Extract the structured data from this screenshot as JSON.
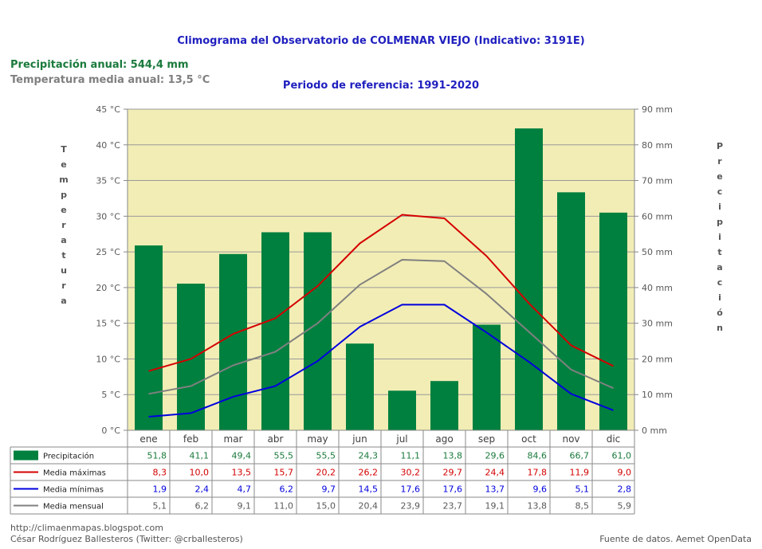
{
  "header": {
    "title": "Climograma del Observatorio de COLMENAR VIEJO (Indicativo: 3191E)",
    "period": "Periodo de referencia: 1991-2020",
    "annual_precipitation": "Precipitación anual: 544,4 mm",
    "annual_temperature": "Temperatura media anual: 13,5 °C"
  },
  "axis_labels": {
    "left_letters": [
      "T",
      "e",
      "m",
      "p",
      "e",
      "r",
      "a",
      "t",
      "u",
      "r",
      "a"
    ],
    "right_letters": [
      "P",
      "r",
      "e",
      "c",
      "i",
      "p",
      "i",
      "t",
      "a",
      "c",
      "i",
      "ó",
      "n"
    ]
  },
  "footer": {
    "url": "http://climaenmapas.blogspot.com",
    "author": "César Rodríguez Ballesteros (Twitter: @crballesteros)",
    "source": "Fuente de datos. Aemet OpenData"
  },
  "colors": {
    "plot_bg": "#f2edb5",
    "bars": "#00803f",
    "max": "#d40000",
    "min": "#0000dd",
    "mean": "#808080",
    "prec_text": "#1a7a3c"
  },
  "chart_data": {
    "type": "bar+line",
    "categories": [
      "ene",
      "feb",
      "mar",
      "abr",
      "may",
      "jun",
      "jul",
      "ago",
      "sep",
      "oct",
      "nov",
      "dic"
    ],
    "left_axis": {
      "unit": "°C",
      "ylim": [
        0,
        45
      ],
      "ticks": [
        "0 °C",
        "5 °C",
        "10 °C",
        "15 °C",
        "20 °C",
        "25 °C",
        "30 °C",
        "35 °C",
        "40 °C",
        "45 °C"
      ]
    },
    "right_axis": {
      "unit": "mm",
      "ylim": [
        0,
        90
      ],
      "ticks": [
        "0 mm",
        "10 mm",
        "20 mm",
        "30 mm",
        "40 mm",
        "50 mm",
        "60 mm",
        "70 mm",
        "80 mm",
        "90 mm"
      ]
    },
    "series": [
      {
        "name": "Precipitación",
        "kind": "bar",
        "axis": "right",
        "values": [
          51.8,
          41.1,
          49.4,
          55.5,
          55.5,
          24.3,
          11.1,
          13.8,
          29.6,
          84.6,
          66.7,
          61.0
        ],
        "labels": [
          "51,8",
          "41,1",
          "49,4",
          "55,5",
          "55,5",
          "24,3",
          "11,1",
          "13,8",
          "29,6",
          "84,6",
          "66,7",
          "61,0"
        ]
      },
      {
        "name": "Media máximas",
        "kind": "line",
        "axis": "left",
        "values": [
          8.3,
          10.0,
          13.5,
          15.7,
          20.2,
          26.2,
          30.2,
          29.7,
          24.4,
          17.8,
          11.9,
          9.0
        ],
        "labels": [
          "8,3",
          "10,0",
          "13,5",
          "15,7",
          "20,2",
          "26,2",
          "30,2",
          "29,7",
          "24,4",
          "17,8",
          "11,9",
          "9,0"
        ]
      },
      {
        "name": "Media mínimas",
        "kind": "line",
        "axis": "left",
        "values": [
          1.9,
          2.4,
          4.7,
          6.2,
          9.7,
          14.5,
          17.6,
          17.6,
          13.7,
          9.6,
          5.1,
          2.8
        ],
        "labels": [
          "1,9",
          "2,4",
          "4,7",
          "6,2",
          "9,7",
          "14,5",
          "17,6",
          "17,6",
          "13,7",
          "9,6",
          "5,1",
          "2,8"
        ]
      },
      {
        "name": "Media mensual",
        "kind": "line",
        "axis": "left",
        "values": [
          5.1,
          6.2,
          9.1,
          11.0,
          15.0,
          20.4,
          23.9,
          23.7,
          19.1,
          13.8,
          8.5,
          5.9
        ],
        "labels": [
          "5,1",
          "6,2",
          "9,1",
          "11,0",
          "15,0",
          "20,4",
          "23,9",
          "23,7",
          "19,1",
          "13,8",
          "8,5",
          "5,9"
        ]
      }
    ]
  }
}
